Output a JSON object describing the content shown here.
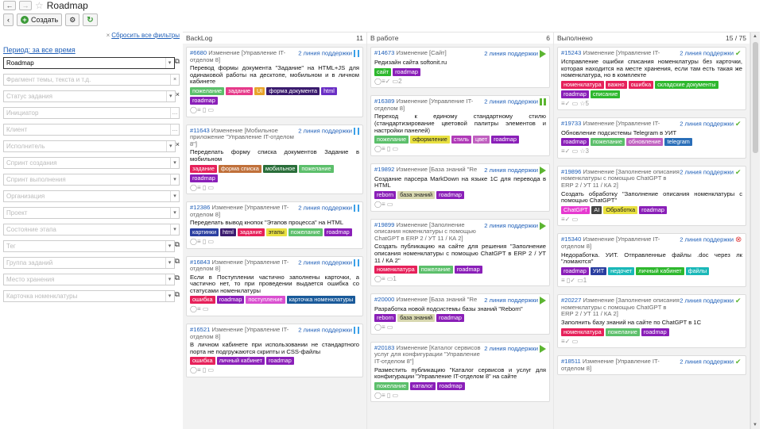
{
  "window": {
    "title": "Roadmap"
  },
  "toolbar": {
    "create_label": "Создать"
  },
  "filters": {
    "reset_label": "Сбросить все фильтры",
    "period_label": "Период: за все время",
    "fields": [
      {
        "name": "project-select",
        "value": "Roadmap",
        "placeholder": "",
        "buttons": [
          "▾",
          "⧉"
        ],
        "focus": true
      },
      {
        "name": "fragment-input",
        "value": "",
        "placeholder": "Фрагмент темы, текста и т.д.",
        "buttons": [
          "×"
        ]
      },
      {
        "name": "status-select",
        "value": "",
        "placeholder": "Статус задания",
        "buttons": [
          "▾",
          "×"
        ]
      },
      {
        "name": "initiator-select",
        "value": "",
        "placeholder": "Инициатор",
        "buttons": [
          "…"
        ]
      },
      {
        "name": "client-select",
        "value": "",
        "placeholder": "Клиент",
        "buttons": [
          "…"
        ]
      },
      {
        "name": "executor-select",
        "value": "",
        "placeholder": "Исполнитель",
        "buttons": [
          "▾",
          "×"
        ]
      },
      {
        "name": "sprint-created-select",
        "value": "",
        "placeholder": "Спринт создания",
        "buttons": [
          "▾"
        ]
      },
      {
        "name": "sprint-done-select",
        "value": "",
        "placeholder": "Спринт выполнения",
        "buttons": [
          "▾"
        ]
      },
      {
        "name": "organization-select",
        "value": "",
        "placeholder": "Организация",
        "buttons": [
          "▾"
        ]
      },
      {
        "name": "project2-select",
        "value": "",
        "placeholder": "Проект",
        "buttons": [
          "▾"
        ]
      },
      {
        "name": "stage-status-select",
        "value": "",
        "placeholder": "Состояние этапа",
        "buttons": [
          "▾"
        ]
      },
      {
        "name": "tag-select",
        "value": "",
        "placeholder": "Тег",
        "buttons": [
          "▾",
          "⧉"
        ]
      },
      {
        "name": "task-group-select",
        "value": "",
        "placeholder": "Группа заданий",
        "buttons": [
          "▾",
          "⧉"
        ]
      },
      {
        "name": "storage-select",
        "value": "",
        "placeholder": "Место хранения",
        "buttons": [
          "▾",
          "⧉"
        ]
      },
      {
        "name": "nomenclature-card-select",
        "value": "",
        "placeholder": "Карточка номенклатуры",
        "buttons": [
          "▾",
          "⧉"
        ]
      }
    ]
  },
  "colors": {
    "link": "#1f5fb8",
    "green": "#5cb531",
    "red": "#e04040"
  },
  "columns": [
    {
      "title": "BackLog",
      "count": "11",
      "cards": [
        {
          "id": "#6680",
          "type": "Изменение [Управление IT-отделом 8]",
          "line": "2 линия поддержки",
          "status": "pause",
          "title": "Перевод формы документа \"Задание\" на HTML+JS для одинаковой работы на десктопе, мобильном и в личном кабинете",
          "tags": [
            {
              "t": "пожелание",
              "c": "#5cbf6b"
            },
            {
              "t": "задание",
              "c": "#e63a8a"
            },
            {
              "t": "UI",
              "c": "#e8a42a"
            },
            {
              "t": "форма документа",
              "c": "#3a1b6e"
            },
            {
              "t": "html",
              "c": "#6a2fc5"
            },
            {
              "t": "roadmap",
              "c": "#8a1fb8"
            }
          ],
          "foot": "◯≡ ▯ ▭"
        },
        {
          "id": "#11643",
          "type": "Изменение [Мобильное приложение \"Управление IT-отделом 8\"]",
          "line": "2 линия поддержки",
          "status": "pause",
          "title": "Переделать форму списка документов Задание в мобильном",
          "tags": [
            {
              "t": "задание",
              "c": "#e6215a"
            },
            {
              "t": "форма списка",
              "c": "#c0703a"
            },
            {
              "t": "мобильное",
              "c": "#2a6e3a"
            },
            {
              "t": "пожелание",
              "c": "#5cbf6b"
            },
            {
              "t": "roadmap",
              "c": "#8a1fb8"
            }
          ],
          "foot": "◯≡ ▯ ▭"
        },
        {
          "id": "#12386",
          "type": "Изменение [Управление IT-отделом 8]",
          "line": "2 линия поддержки",
          "status": "pause",
          "title": "Переделать вывод кнопок \"Этапов процесса\" на HTML",
          "tags": [
            {
              "t": "картинки",
              "c": "#2a3ea0"
            },
            {
              "t": "html",
              "c": "#3a1b6e"
            },
            {
              "t": "задание",
              "c": "#e6215a"
            },
            {
              "t": "этапы",
              "c": "#e8e040",
              "dark": true
            },
            {
              "t": "пожелание",
              "c": "#5cbf6b"
            },
            {
              "t": "roadmap",
              "c": "#8a1fb8"
            }
          ],
          "foot": "◯≡ ▯ ▭"
        },
        {
          "id": "#16843",
          "type": "Изменение [Управление IT-отделом 8]",
          "line": "2 линия поддержки",
          "status": "pause",
          "title": "Если в Поступлении частично заполнены карточки, а частично нет, то при проведении выдается ошибка со статусами номенклатуры",
          "tags": [
            {
              "t": "ошибка",
              "c": "#e6215a"
            },
            {
              "t": "roadmap",
              "c": "#8a1fb8"
            },
            {
              "t": "поступление",
              "c": "#d94fd0"
            },
            {
              "t": "карточка номенклатуры",
              "c": "#1a5a9a"
            }
          ],
          "foot": "◯≡ ▭"
        },
        {
          "id": "#16521",
          "type": "Изменение [Управление IT-отделом 8]",
          "line": "2 линия поддержки",
          "status": "pause",
          "title": "В личном кабинете при использовании не стандартного порта не подгружаются скрипты и CSS-файлы",
          "tags": [
            {
              "t": "ошибка",
              "c": "#e6215a"
            },
            {
              "t": "личный кабинет",
              "c": "#8a1fb8"
            },
            {
              "t": "roadmap",
              "c": "#8a1fb8"
            }
          ],
          "foot": "◯≡ ▯ ▭"
        }
      ]
    },
    {
      "title": "В работе",
      "count": "6",
      "cards": [
        {
          "id": "#14673",
          "type": "Изменение [Сайт]",
          "line": "2 линия поддержки",
          "status": "play",
          "title": "Редизайн сайта softonit.ru",
          "tags": [
            {
              "t": "сайт",
              "c": "#2eb82e"
            },
            {
              "t": "roadmap",
              "c": "#8a1fb8"
            }
          ],
          "foot": "◯≡✓ ▭2"
        },
        {
          "id": "#16389",
          "type": "Изменение [Управление IT-отделом 8]",
          "line": "2 линия поддержки",
          "status": "pause-green",
          "title": "Переход к единому стандартному стилю (стандартизирование цветовой палитры элементов и настройки панелей)",
          "tags": [
            {
              "t": "пожелание",
              "c": "#5cbf6b"
            },
            {
              "t": "оформление",
              "c": "#e8e040",
              "dark": true
            },
            {
              "t": "стиль",
              "c": "#b03ab8"
            },
            {
              "t": "цвет",
              "c": "#c060c0"
            },
            {
              "t": "roadmap",
              "c": "#8a1fb8"
            }
          ],
          "foot": "◯≡ ▯ ▭"
        },
        {
          "id": "#19892",
          "type": "Изменение [База знаний \"Re",
          "line": "2 линия поддержки",
          "status": "play",
          "title": "Создание парсера MarkDown на языке 1С для перевода в HTML",
          "tags": [
            {
              "t": "reborn",
              "c": "#8a1fb8"
            },
            {
              "t": "база знаний",
              "c": "#d8d8b0",
              "dark": true
            },
            {
              "t": "roadmap",
              "c": "#8a1fb8"
            }
          ],
          "foot": "◯≡ ▭"
        },
        {
          "id": "#19899",
          "type": "Изменение [Заполнение описания номенклатуры с помощью ChatGPT в ERP 2 / УТ 11 / КА 2]",
          "line": "2 линия поддержки",
          "status": "play",
          "title": "Создать публикацию на сайте для решения \"Заполнение описания номенклатуры с помощью ChatGPT в ERP 2 / УТ 11 / КА 2\"",
          "tags": [
            {
              "t": "номенклатура",
              "c": "#e6215a"
            },
            {
              "t": "пожелание",
              "c": "#5cbf6b"
            },
            {
              "t": "roadmap",
              "c": "#8a1fb8"
            }
          ],
          "foot": "◯≡ ▭1"
        },
        {
          "id": "#20000",
          "type": "Изменение [База знаний \"Re",
          "line": "2 линия поддержки",
          "status": "play",
          "title": "Разработка новой подсистемы базы знаний \"Reborn\"",
          "tags": [
            {
              "t": "reborn",
              "c": "#8a1fb8"
            },
            {
              "t": "база знаний",
              "c": "#d8d8b0",
              "dark": true
            },
            {
              "t": "roadmap",
              "c": "#8a1fb8"
            }
          ],
          "foot": "◯≡ ▭"
        },
        {
          "id": "#20183",
          "type": "Изменение [Каталог сервисов услуг для конфигурации \"Управление IT-отделом 8\"]",
          "line": "2 линия поддержки",
          "status": "play",
          "title": "Разместить публикацию \"Каталог сервисов и услуг для конфигурации \"Управление IT-отделом 8\" на сайте",
          "tags": [
            {
              "t": "пожелание",
              "c": "#5cbf6b"
            },
            {
              "t": "каталог",
              "c": "#8a1fb8"
            },
            {
              "t": "roadmap",
              "c": "#8a1fb8"
            }
          ],
          "foot": "◯≡ ▯ ▭"
        }
      ]
    },
    {
      "title": "Выполнено",
      "count": "15 / 75",
      "cards": [
        {
          "id": "#15243",
          "type": "Изменение [Управление IT-",
          "line": "2 линия поддержки",
          "status": "check",
          "title": "Исправление ошибки списания номенклатуры без карточки, которая находится на месте хранения, если там есть такая же номенклатура, но в комплекте",
          "tags": [
            {
              "t": "номенклатура",
              "c": "#e6215a"
            },
            {
              "t": "важно",
              "c": "#e6215a"
            },
            {
              "t": "ошибка",
              "c": "#e6215a"
            },
            {
              "t": "складские документы",
              "c": "#2eb82e"
            },
            {
              "t": "roadmap",
              "c": "#8a1fb8"
            },
            {
              "t": "списание",
              "c": "#2eb82e"
            }
          ],
          "foot": "≡✓ ▭ ☆5"
        },
        {
          "id": "#19733",
          "type": "Изменение [Управление IT-",
          "line": "2 линия поддержки",
          "status": "check",
          "title": "Обновление подсистемы Telegram в УИТ",
          "tags": [
            {
              "t": "roadmap",
              "c": "#8a1fb8"
            },
            {
              "t": "пожелание",
              "c": "#5cbf6b"
            },
            {
              "t": "обновление",
              "c": "#c060c0"
            },
            {
              "t": "telegram",
              "c": "#2a6eb8"
            }
          ],
          "foot": "≡✓ ▭ ☆3"
        },
        {
          "id": "#19896",
          "type": "Изменение [Заполнение описания номенклатуры с помощью ChatGPT в ERP 2 / УТ 11 / КА 2]",
          "line": "2 линия поддержки",
          "status": "check",
          "title": "Создать обработку \"Заполнение описания номенклатуры с помощью ChatGPT\"",
          "tags": [
            {
              "t": "ChatGPT",
              "c": "#e63ad0"
            },
            {
              "t": "AI",
              "c": "#444444"
            },
            {
              "t": "Обработка",
              "c": "#e8e040",
              "dark": true
            },
            {
              "t": "roadmap",
              "c": "#8a1fb8"
            }
          ],
          "foot": "≡✓ ▭"
        },
        {
          "id": "#15340",
          "type": "Изменение [Управление IT-отделом 8]",
          "line": "2 линия поддержки",
          "status": "cancel",
          "title": "Недоработка. УИТ. Отправленные файлы .doc через лк \"ломаются\"",
          "tags": [
            {
              "t": "roadmap",
              "c": "#8a1fb8"
            },
            {
              "t": "УИТ",
              "c": "#2a3ea0"
            },
            {
              "t": "недочет",
              "c": "#1ab8b8"
            },
            {
              "t": "личный кабинет",
              "c": "#2eb82e"
            },
            {
              "t": "файлы",
              "c": "#1ab8b8"
            }
          ],
          "foot": "≡ ▯✓ ▭1"
        },
        {
          "id": "#20227",
          "type": "Изменение [Заполнение описания номенклатуры с помощью ChatGPT в ERP 2 / УТ 11 / КА 2]",
          "line": "2 линия поддержки",
          "status": "check",
          "title": "Заполнить базу знаний на сайте по ChatGPT в 1С",
          "tags": [
            {
              "t": "номенклатура",
              "c": "#e6215a"
            },
            {
              "t": "пожелание",
              "c": "#5cbf6b"
            },
            {
              "t": "roadmap",
              "c": "#8a1fb8"
            }
          ],
          "foot": "≡✓ ▭"
        },
        {
          "id": "#18511",
          "type": "Изменение [Управление IT-отделом 8]",
          "line": "2 линия поддержки",
          "status": "check",
          "title": "",
          "tags": [],
          "foot": ""
        }
      ]
    }
  ]
}
